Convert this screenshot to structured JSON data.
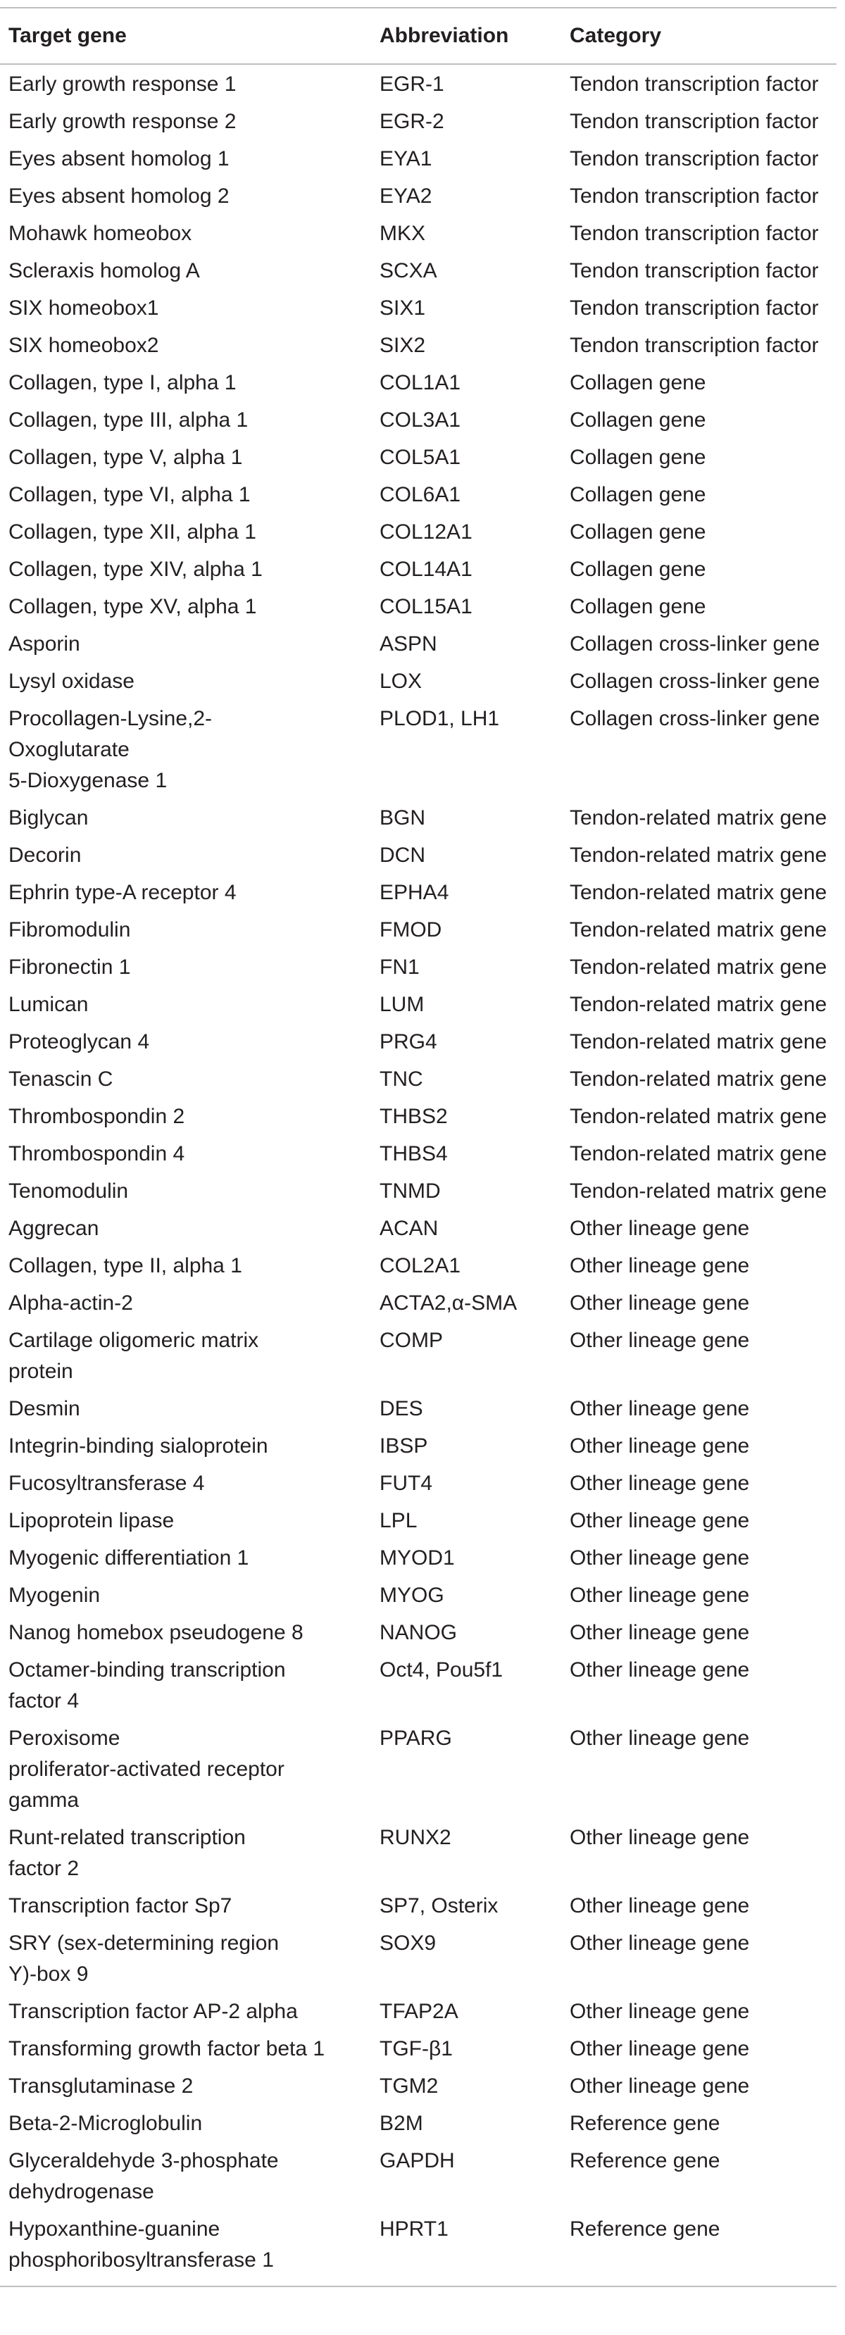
{
  "table": {
    "headers": [
      "Target gene",
      "Abbreviation",
      "Category"
    ],
    "rows": [
      [
        "Early growth response 1",
        "EGR-1",
        "Tendon transcription factor"
      ],
      [
        "Early growth response 2",
        "EGR-2",
        "Tendon transcription factor"
      ],
      [
        "Eyes absent homolog 1",
        "EYA1",
        "Tendon transcription factor"
      ],
      [
        "Eyes absent homolog 2",
        "EYA2",
        "Tendon transcription factor"
      ],
      [
        "Mohawk homeobox",
        "MKX",
        "Tendon transcription factor"
      ],
      [
        "Scleraxis homolog A",
        "SCXA",
        "Tendon transcription factor"
      ],
      [
        "SIX homeobox1",
        "SIX1",
        "Tendon transcription factor"
      ],
      [
        "SIX homeobox2",
        "SIX2",
        "Tendon transcription factor"
      ],
      [
        "Collagen, type I, alpha 1",
        "COL1A1",
        "Collagen gene"
      ],
      [
        "Collagen, type III, alpha 1",
        "COL3A1",
        "Collagen gene"
      ],
      [
        "Collagen, type V, alpha 1",
        "COL5A1",
        "Collagen gene"
      ],
      [
        "Collagen, type VI, alpha 1",
        "COL6A1",
        "Collagen gene"
      ],
      [
        "Collagen, type XII, alpha 1",
        "COL12A1",
        "Collagen gene"
      ],
      [
        "Collagen, type XIV, alpha 1",
        "COL14A1",
        "Collagen gene"
      ],
      [
        "Collagen, type XV, alpha 1",
        "COL15A1",
        "Collagen gene"
      ],
      [
        "Asporin",
        "ASPN",
        "Collagen cross-linker gene"
      ],
      [
        "Lysyl oxidase",
        "LOX",
        "Collagen cross-linker gene"
      ],
      [
        "Procollagen-Lysine,2-\nOxoglutarate\n5-Dioxygenase 1",
        "PLOD1, LH1",
        "Collagen cross-linker gene"
      ],
      [
        "Biglycan",
        "BGN",
        "Tendon-related matrix gene"
      ],
      [
        "Decorin",
        "DCN",
        "Tendon-related matrix gene"
      ],
      [
        "Ephrin type-A receptor 4",
        "EPHA4",
        "Tendon-related matrix gene"
      ],
      [
        "Fibromodulin",
        "FMOD",
        "Tendon-related matrix gene"
      ],
      [
        "Fibronectin 1",
        "FN1",
        "Tendon-related matrix gene"
      ],
      [
        "Lumican",
        "LUM",
        "Tendon-related matrix gene"
      ],
      [
        "Proteoglycan 4",
        "PRG4",
        "Tendon-related matrix gene"
      ],
      [
        "Tenascin C",
        "TNC",
        "Tendon-related matrix gene"
      ],
      [
        "Thrombospondin 2",
        "THBS2",
        "Tendon-related matrix gene"
      ],
      [
        "Thrombospondin 4",
        "THBS4",
        "Tendon-related matrix gene"
      ],
      [
        "Tenomodulin",
        "TNMD",
        "Tendon-related matrix gene"
      ],
      [
        "Aggrecan",
        "ACAN",
        "Other lineage gene"
      ],
      [
        "Collagen, type II, alpha 1",
        "COL2A1",
        "Other lineage gene"
      ],
      [
        "Alpha-actin-2",
        "ACTA2,α-SMA",
        "Other lineage gene"
      ],
      [
        "Cartilage oligomeric matrix\nprotein",
        "COMP",
        "Other lineage gene"
      ],
      [
        "Desmin",
        "DES",
        "Other lineage gene"
      ],
      [
        "Integrin-binding sialoprotein",
        "IBSP",
        "Other lineage gene"
      ],
      [
        "Fucosyltransferase 4",
        "FUT4",
        "Other lineage gene"
      ],
      [
        "Lipoprotein lipase",
        "LPL",
        "Other lineage gene"
      ],
      [
        "Myogenic differentiation 1",
        "MYOD1",
        "Other lineage gene"
      ],
      [
        "Myogenin",
        "MYOG",
        "Other lineage gene"
      ],
      [
        "Nanog homebox pseudogene 8",
        "NANOG",
        "Other lineage gene"
      ],
      [
        "Octamer-binding transcription\nfactor 4",
        "Oct4, Pou5f1",
        "Other lineage gene"
      ],
      [
        "Peroxisome\nproliferator-activated receptor\ngamma",
        "PPARG",
        "Other lineage gene"
      ],
      [
        "Runt-related transcription\nfactor 2",
        "RUNX2",
        "Other lineage gene"
      ],
      [
        "Transcription factor Sp7",
        "SP7, Osterix",
        "Other lineage gene"
      ],
      [
        "SRY (sex-determining region\nY)-box 9",
        "SOX9",
        "Other lineage gene"
      ],
      [
        "Transcription factor AP-2 alpha",
        "TFAP2A",
        "Other lineage gene"
      ],
      [
        "Transforming growth factor beta 1",
        "TGF-β1",
        "Other lineage gene"
      ],
      [
        "Transglutaminase 2",
        "TGM2",
        "Other lineage gene"
      ],
      [
        "Beta-2-Microglobulin",
        "B2M",
        "Reference gene"
      ],
      [
        "Glyceraldehyde 3-phosphate\ndehydrogenase",
        "GAPDH",
        "Reference gene"
      ],
      [
        "Hypoxanthine-guanine\nphosphoribosyltransferase 1",
        "HPRT1",
        "Reference gene"
      ]
    ]
  }
}
